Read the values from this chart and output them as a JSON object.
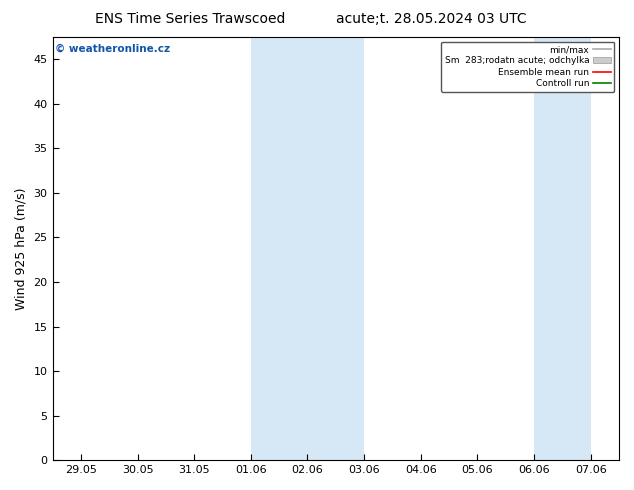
{
  "title_left": "ENS Time Series Trawscoed",
  "title_right": "acute;t. 28.05.2024 03 UTC",
  "ylabel": "Wind 925 hPa (m/s)",
  "watermark": "© weatheronline.cz",
  "ylim": [
    0,
    47.5
  ],
  "yticks": [
    0,
    5,
    10,
    15,
    20,
    25,
    30,
    35,
    40,
    45
  ],
  "x_labels": [
    "29.05",
    "30.05",
    "31.05",
    "01.06",
    "02.06",
    "03.06",
    "04.06",
    "05.06",
    "06.06",
    "07.06"
  ],
  "x_values": [
    0,
    1,
    2,
    3,
    4,
    5,
    6,
    7,
    8,
    9
  ],
  "shade_bands": [
    {
      "xmin": 3,
      "xmax": 5
    },
    {
      "xmin": 8,
      "xmax": 9
    }
  ],
  "shade_color": "#d6e8f5",
  "legend_labels": [
    "min/max",
    "Sm  283;rodatn acute; odchylka",
    "Ensemble mean run",
    "Controll run"
  ],
  "legend_colors": [
    "#aaaaaa",
    "#cccccc",
    "red",
    "green"
  ],
  "background_color": "#ffffff",
  "title_fontsize": 10,
  "axis_label_fontsize": 9,
  "tick_fontsize": 8,
  "watermark_fontsize": 7.5,
  "spine_color": "#000000"
}
